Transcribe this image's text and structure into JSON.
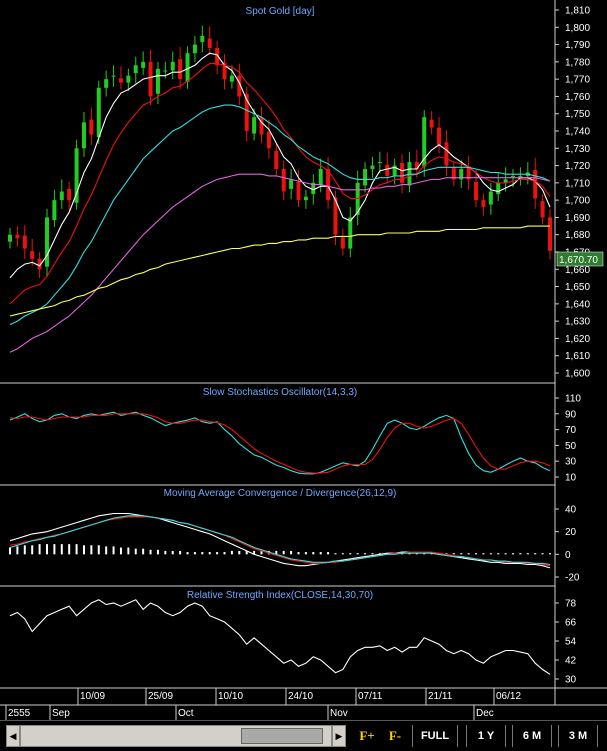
{
  "chart_data": [
    {
      "type": "candlestick",
      "title": "Spot Gold [day]",
      "ylim": [
        1600,
        1810
      ],
      "y_ticks": [
        "1,810",
        "1,800",
        "1,790",
        "1,780",
        "1,770",
        "1,760",
        "1,750",
        "1,740",
        "1,730",
        "1,720",
        "1,710",
        "1,700",
        "1,690",
        "1,680",
        "1,670",
        "1,660",
        "1,650",
        "1,640",
        "1,630",
        "1,620",
        "1,610",
        "1,600"
      ],
      "last_price_label": "1,670.70",
      "x_date_labels": [
        "10/09",
        "25/09",
        "10/10",
        "24/10",
        "07/11",
        "21/11",
        "06/12"
      ],
      "x_month_labels": [
        "2555",
        "Sep",
        "Oct",
        "Nov",
        "Dec"
      ],
      "close": [
        1680,
        1678,
        1672,
        1666,
        1660,
        1690,
        1700,
        1705,
        1700,
        1730,
        1745,
        1738,
        1765,
        1770,
        1772,
        1768,
        1772,
        1778,
        1780,
        1760,
        1776,
        1775,
        1780,
        1770,
        1785,
        1790,
        1795,
        1788,
        1778,
        1770,
        1772,
        1760,
        1740,
        1748,
        1738,
        1730,
        1718,
        1705,
        1712,
        1700,
        1702,
        1710,
        1718,
        1700,
        1680,
        1672,
        1690,
        1710,
        1718,
        1720,
        1722,
        1714,
        1720,
        1710,
        1722,
        1718,
        1748,
        1742,
        1732,
        1720,
        1712,
        1718,
        1712,
        1700,
        1696,
        1705,
        1710,
        1712,
        1714,
        1714,
        1716,
        1701,
        1690,
        1670.7
      ],
      "colors": {
        "up": "#22cc22",
        "down": "#ee1111"
      },
      "overlays": [
        {
          "color": "#ffffff",
          "values": [
            1655,
            1660,
            1663,
            1664,
            1662,
            1668,
            1677,
            1686,
            1693,
            1704,
            1716,
            1724,
            1736,
            1748,
            1756,
            1762,
            1764,
            1767,
            1770,
            1771,
            1772,
            1772,
            1774,
            1774,
            1776,
            1778,
            1782,
            1785,
            1784,
            1778,
            1775,
            1768,
            1758,
            1751,
            1745,
            1741,
            1733,
            1725,
            1721,
            1713,
            1708,
            1706,
            1708,
            1708,
            1700,
            1690,
            1688,
            1693,
            1700,
            1710,
            1717,
            1718,
            1719,
            1717,
            1718,
            1718,
            1724,
            1729,
            1732,
            1729,
            1725,
            1722,
            1719,
            1716,
            1710,
            1706,
            1705,
            1707,
            1709,
            1713,
            1713,
            1711,
            1706,
            1696
          ]
        },
        {
          "color": "#ee1111",
          "values": [
            1640,
            1644,
            1648,
            1650,
            1651,
            1656,
            1663,
            1670,
            1676,
            1685,
            1695,
            1703,
            1713,
            1723,
            1732,
            1739,
            1745,
            1750,
            1755,
            1757,
            1760,
            1762,
            1765,
            1766,
            1769,
            1772,
            1776,
            1779,
            1779,
            1778,
            1777,
            1774,
            1768,
            1764,
            1759,
            1754,
            1748,
            1741,
            1736,
            1730,
            1725,
            1722,
            1720,
            1717,
            1711,
            1704,
            1701,
            1701,
            1703,
            1706,
            1709,
            1710,
            1712,
            1712,
            1714,
            1715,
            1720,
            1723,
            1725,
            1724,
            1722,
            1721,
            1719,
            1716,
            1713,
            1711,
            1710,
            1710,
            1711,
            1712,
            1712,
            1711,
            1708,
            1702
          ]
        },
        {
          "color": "#33dddd",
          "values": [
            1628,
            1630,
            1633,
            1635,
            1637,
            1640,
            1645,
            1650,
            1655,
            1662,
            1670,
            1676,
            1684,
            1692,
            1700,
            1706,
            1712,
            1718,
            1724,
            1728,
            1732,
            1736,
            1740,
            1742,
            1745,
            1748,
            1751,
            1753,
            1754,
            1755,
            1755,
            1754,
            1752,
            1750,
            1748,
            1745,
            1742,
            1738,
            1735,
            1731,
            1728,
            1725,
            1723,
            1721,
            1718,
            1715,
            1713,
            1712,
            1712,
            1712,
            1713,
            1713,
            1714,
            1714,
            1715,
            1715,
            1717,
            1718,
            1719,
            1719,
            1719,
            1719,
            1719,
            1718,
            1717,
            1716,
            1716,
            1715,
            1715,
            1715,
            1715,
            1714,
            1713,
            1711
          ]
        },
        {
          "color": "#dd66dd",
          "values": [
            1612,
            1614,
            1617,
            1620,
            1622,
            1624,
            1627,
            1630,
            1633,
            1637,
            1641,
            1645,
            1650,
            1655,
            1660,
            1665,
            1670,
            1675,
            1680,
            1684,
            1688,
            1692,
            1696,
            1699,
            1702,
            1705,
            1708,
            1710,
            1712,
            1713,
            1714,
            1715,
            1715,
            1715,
            1715,
            1714,
            1714,
            1713,
            1712,
            1711,
            1710,
            1709,
            1709,
            1708,
            1707,
            1706,
            1706,
            1706,
            1706,
            1707,
            1707,
            1708,
            1708,
            1709,
            1709,
            1710,
            1711,
            1712,
            1712,
            1713,
            1713,
            1713,
            1713,
            1713,
            1713,
            1713,
            1713,
            1713,
            1713,
            1713,
            1713,
            1713,
            1712,
            1711
          ]
        },
        {
          "color": "#ffff55",
          "values": [
            1633,
            1634,
            1635,
            1636,
            1637,
            1638,
            1639,
            1641,
            1642,
            1644,
            1645,
            1647,
            1649,
            1650,
            1652,
            1654,
            1655,
            1657,
            1658,
            1660,
            1661,
            1663,
            1664,
            1665,
            1666,
            1667,
            1668,
            1669,
            1670,
            1671,
            1672,
            1672,
            1673,
            1674,
            1674,
            1675,
            1675,
            1676,
            1676,
            1677,
            1677,
            1678,
            1678,
            1678,
            1679,
            1679,
            1679,
            1680,
            1680,
            1680,
            1680,
            1681,
            1681,
            1681,
            1681,
            1682,
            1682,
            1682,
            1682,
            1683,
            1683,
            1683,
            1683,
            1683,
            1684,
            1684,
            1684,
            1684,
            1684,
            1684,
            1685,
            1685,
            1685,
            1685
          ]
        }
      ]
    },
    {
      "type": "line",
      "title": "Slow Stochastics Oscillator(14,3,3)",
      "ylim": [
        10,
        110
      ],
      "y_ticks": [
        "110",
        "90",
        "70",
        "50",
        "30",
        "10"
      ],
      "series": [
        {
          "color": "#33dddd",
          "values": [
            82,
            86,
            90,
            84,
            80,
            82,
            88,
            90,
            86,
            84,
            88,
            90,
            88,
            90,
            92,
            88,
            90,
            92,
            88,
            85,
            80,
            75,
            78,
            80,
            82,
            85,
            80,
            78,
            80,
            70,
            62,
            52,
            45,
            38,
            35,
            30,
            25,
            22,
            18,
            15,
            14,
            14,
            16,
            20,
            24,
            28,
            26,
            24,
            30,
            45,
            62,
            78,
            82,
            78,
            72,
            70,
            74,
            80,
            85,
            88,
            84,
            60,
            40,
            25,
            18,
            16,
            20,
            25,
            30,
            34,
            30,
            28,
            22,
            18
          ]
        },
        {
          "color": "#ee1111",
          "values": [
            85,
            84,
            86,
            86,
            84,
            82,
            84,
            86,
            86,
            86,
            86,
            88,
            88,
            88,
            90,
            90,
            90,
            90,
            90,
            88,
            85,
            80,
            78,
            78,
            80,
            82,
            82,
            80,
            79,
            76,
            70,
            62,
            54,
            46,
            40,
            35,
            30,
            26,
            22,
            18,
            16,
            15,
            15,
            16,
            20,
            24,
            26,
            26,
            26,
            32,
            45,
            60,
            72,
            78,
            78,
            74,
            72,
            74,
            78,
            82,
            84,
            78,
            64,
            48,
            34,
            24,
            20,
            20,
            24,
            28,
            30,
            30,
            28,
            24
          ]
        }
      ]
    },
    {
      "type": "line",
      "title": "Moving Average Convergence / Divergence(26,12,9)",
      "ylim": [
        -20,
        40
      ],
      "y_ticks": [
        "40",
        "20",
        "0",
        "-20"
      ],
      "series": [
        {
          "color": "#ffffff",
          "values": [
            12,
            14,
            16,
            18,
            19,
            20,
            22,
            24,
            26,
            28,
            30,
            32,
            34,
            35,
            36,
            36,
            36,
            35,
            34,
            33,
            32,
            30,
            28,
            26,
            24,
            22,
            20,
            18,
            15,
            12,
            9,
            6,
            3,
            0,
            -2,
            -4,
            -6,
            -8,
            -9,
            -10,
            -10,
            -9,
            -8,
            -7,
            -6,
            -5,
            -4,
            -3,
            -2,
            -1,
            0,
            1,
            1,
            2,
            2,
            2,
            2,
            1,
            0,
            -1,
            -2,
            -3,
            -4,
            -5,
            -6,
            -7,
            -7,
            -8,
            -8,
            -8,
            -9,
            -9,
            -10,
            -12
          ]
        },
        {
          "color": "#ee1111",
          "values": [
            8,
            9,
            11,
            12,
            14,
            15,
            17,
            18,
            20,
            22,
            24,
            26,
            28,
            30,
            31,
            32,
            33,
            33,
            33,
            33,
            32,
            31,
            30,
            28,
            27,
            25,
            23,
            21,
            19,
            17,
            14,
            11,
            8,
            5,
            3,
            1,
            -1,
            -3,
            -5,
            -6,
            -7,
            -8,
            -8,
            -7,
            -7,
            -6,
            -5,
            -4,
            -3,
            -2,
            -1,
            0,
            1,
            1,
            2,
            2,
            2,
            2,
            1,
            0,
            -1,
            -2,
            -3,
            -4,
            -5,
            -5,
            -6,
            -7,
            -7,
            -7,
            -8,
            -8,
            -9,
            -10
          ]
        },
        {
          "color": "#33dddd",
          "values": [
            6,
            8,
            10,
            12,
            13,
            15,
            16,
            18,
            20,
            22,
            24,
            26,
            28,
            30,
            32,
            33,
            34,
            34,
            34,
            33,
            32,
            31,
            30,
            28,
            27,
            25,
            23,
            21,
            19,
            17,
            15,
            12,
            9,
            6,
            4,
            2,
            0,
            -2,
            -4,
            -5,
            -6,
            -7,
            -7,
            -7,
            -6,
            -6,
            -5,
            -4,
            -3,
            -2,
            -1,
            0,
            0,
            1,
            1,
            1,
            1,
            1,
            0,
            -1,
            -2,
            -2,
            -3,
            -4,
            -5,
            -5,
            -6,
            -6,
            -7,
            -7,
            -7,
            -8,
            -8,
            -9
          ]
        }
      ],
      "histogram": [
        6,
        7,
        8,
        8,
        9,
        9,
        9,
        9,
        9,
        9,
        8,
        8,
        8,
        7,
        7,
        6,
        6,
        5,
        5,
        4,
        4,
        3,
        3,
        3,
        2,
        2,
        2,
        2,
        2,
        2,
        3,
        3,
        3,
        3,
        3,
        3,
        3,
        3,
        3,
        2,
        2,
        2,
        2,
        2,
        1,
        1,
        1,
        1,
        1,
        1,
        1,
        1,
        1,
        1,
        1,
        1,
        1,
        1,
        1,
        1,
        1,
        1,
        1,
        1,
        1,
        1,
        1,
        1,
        1,
        1,
        1,
        1,
        1,
        1
      ]
    },
    {
      "type": "line",
      "title": "Relative Strength Index(CLOSE,14,30,70)",
      "ylim": [
        30,
        78
      ],
      "y_ticks": [
        "78",
        "66",
        "54",
        "42",
        "30"
      ],
      "series": [
        {
          "color": "#ffffff",
          "values": [
            70,
            72,
            68,
            60,
            65,
            70,
            72,
            74,
            76,
            70,
            74,
            78,
            80,
            77,
            78,
            76,
            78,
            80,
            74,
            78,
            76,
            72,
            70,
            72,
            76,
            78,
            76,
            70,
            68,
            66,
            62,
            58,
            52,
            56,
            52,
            48,
            44,
            40,
            42,
            38,
            40,
            44,
            42,
            38,
            34,
            36,
            44,
            48,
            50,
            50,
            51,
            48,
            50,
            47,
            50,
            50,
            56,
            54,
            52,
            48,
            46,
            48,
            46,
            42,
            40,
            44,
            46,
            48,
            48,
            47,
            46,
            40,
            36,
            33
          ]
        }
      ]
    }
  ],
  "toolbar": {
    "f_plus": "F+",
    "f_minus": "F-",
    "full": "FULL",
    "1y": "1 Y",
    "6m": "6 M",
    "3m": "3 M"
  }
}
